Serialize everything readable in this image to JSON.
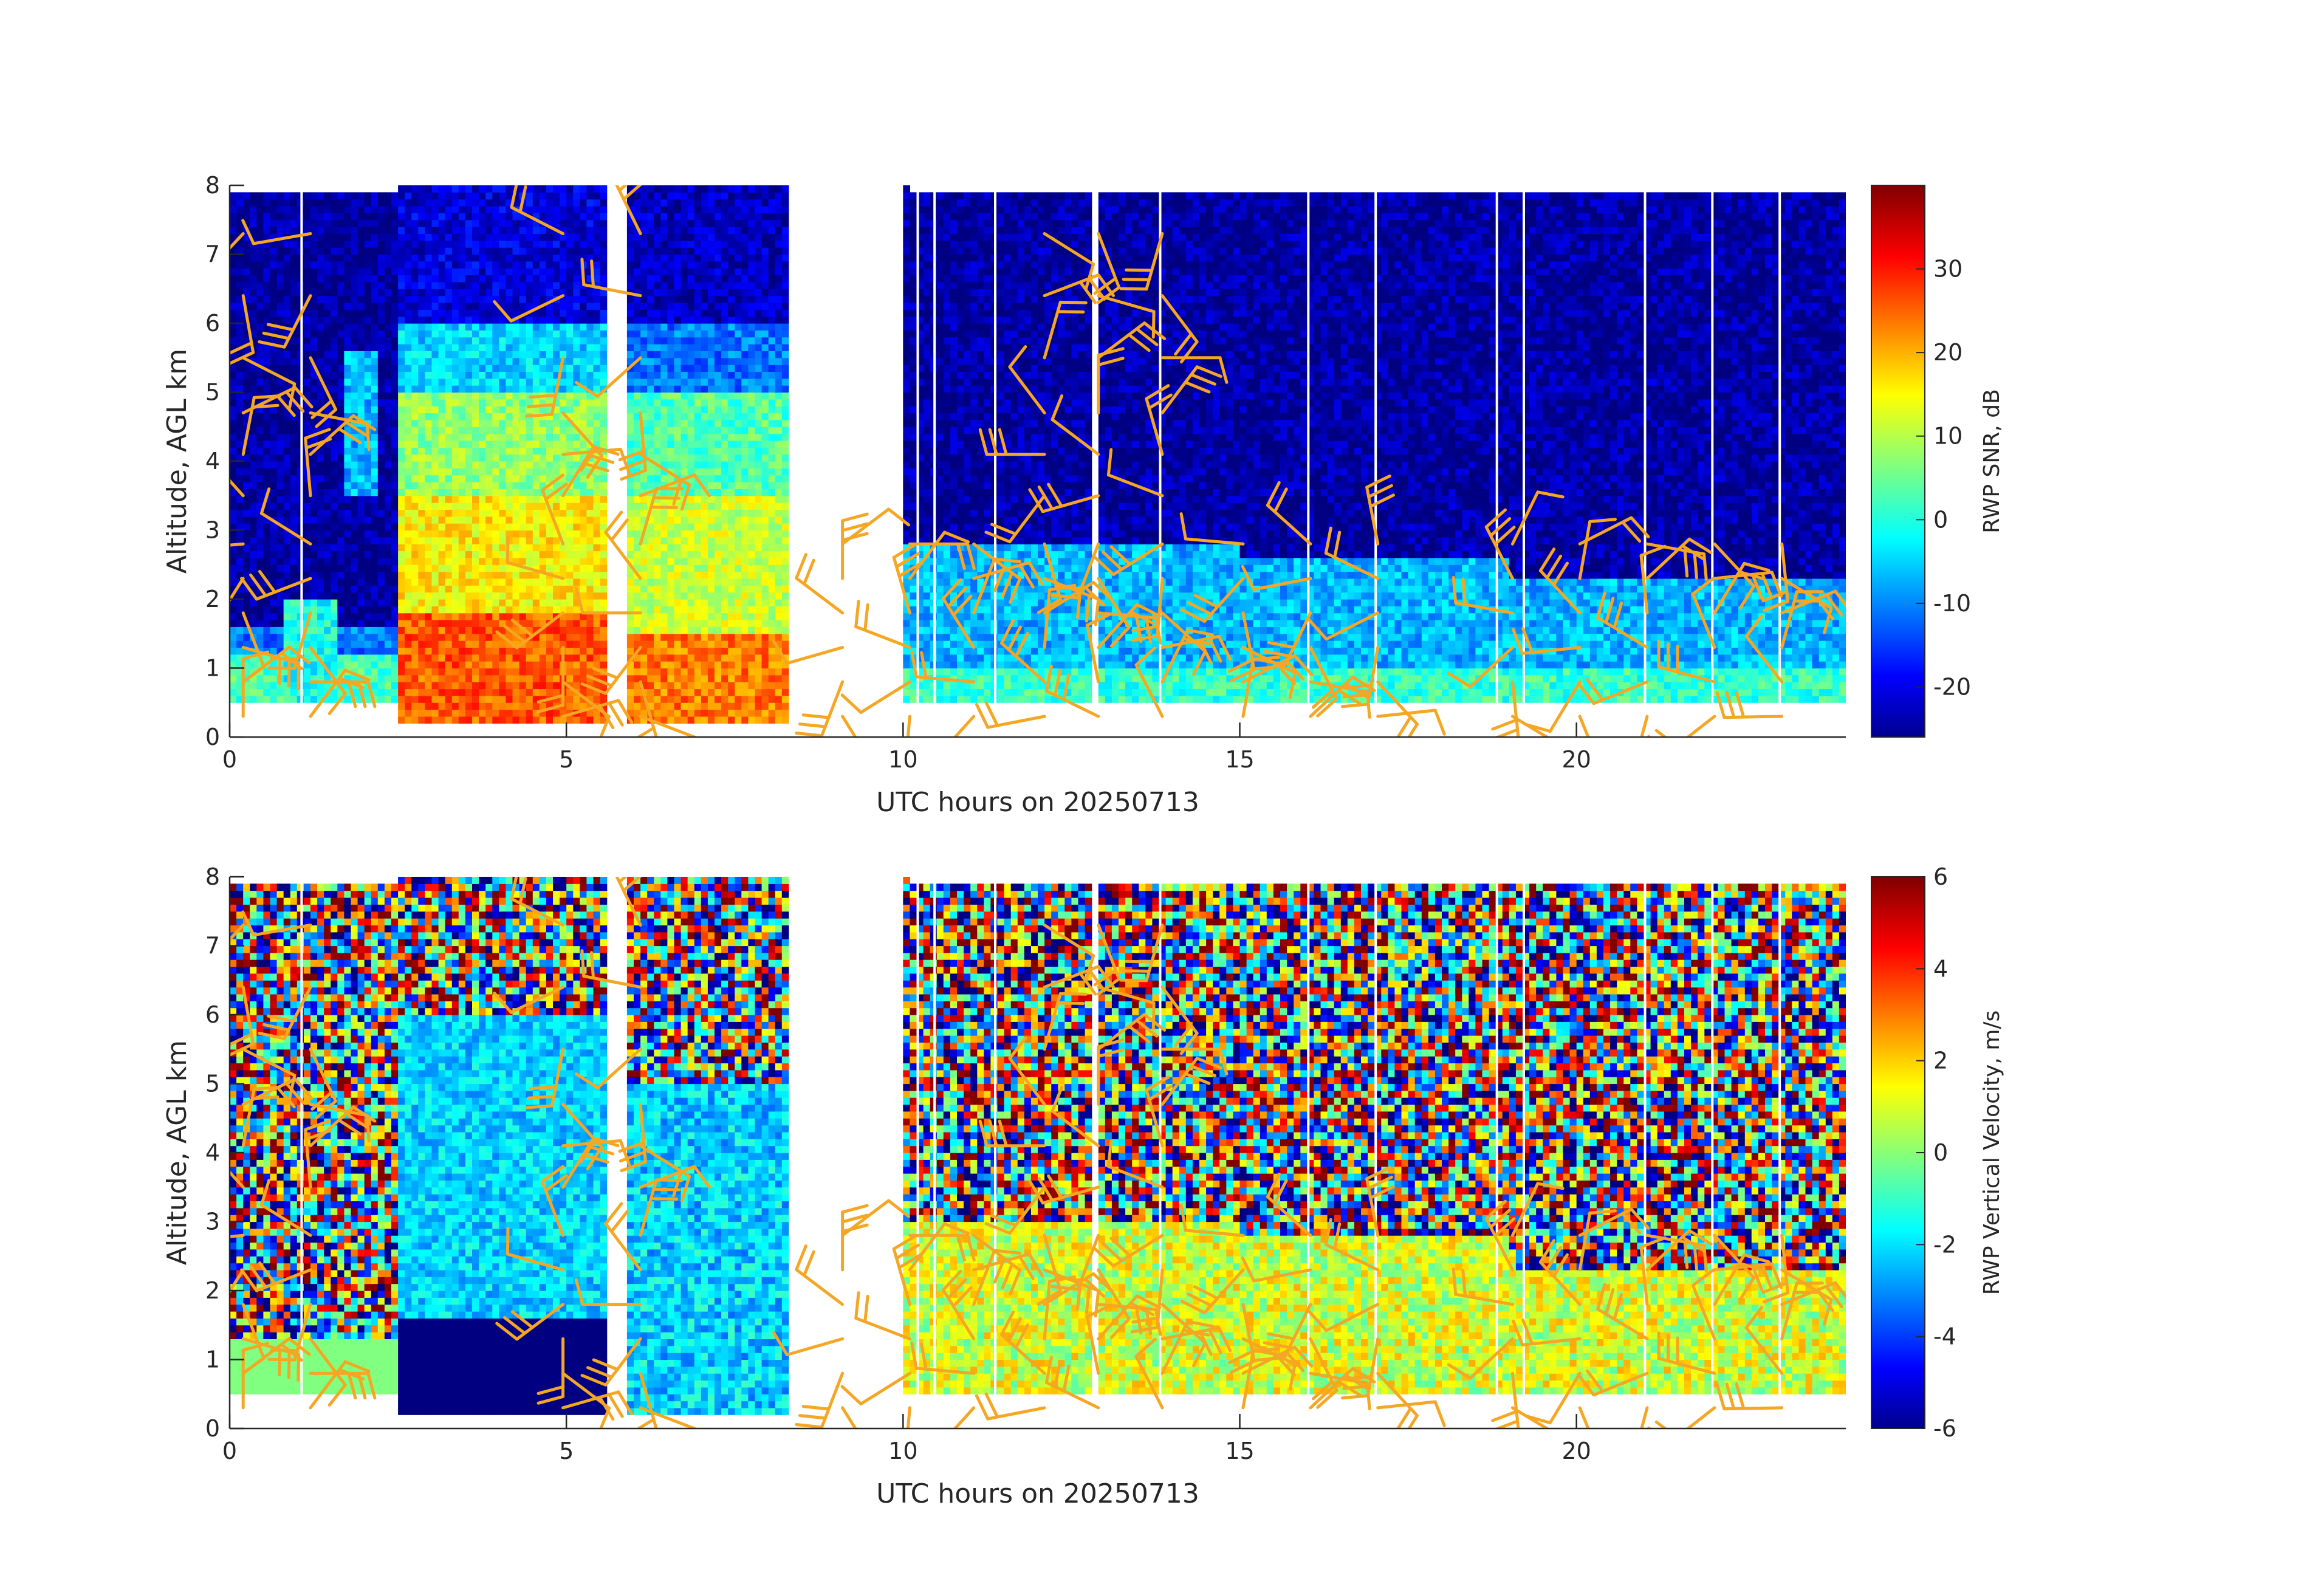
{
  "chart_data": [
    {
      "type": "heatmap",
      "name": "snr",
      "title": "",
      "xlabel": "UTC hours on 20250713",
      "ylabel": "Altitude, AGL km",
      "xlim": [
        0,
        24
      ],
      "ylim": [
        0,
        8
      ],
      "x_ticks": [
        0,
        5,
        10,
        15,
        20
      ],
      "y_ticks": [
        0,
        1,
        2,
        3,
        4,
        5,
        6,
        7,
        8
      ],
      "colorbar": {
        "label": "RWP SNR, dB",
        "min": -26,
        "max": 40,
        "ticks": [
          -20,
          -10,
          0,
          10,
          20,
          30
        ],
        "colormap": "jet"
      },
      "data_gaps_hours": [
        [
          5.6,
          5.9
        ],
        [
          8.3,
          10.05
        ],
        [
          12.75,
          12.9
        ]
      ],
      "barbs_color": "#f5a623"
    },
    {
      "type": "heatmap",
      "name": "velocity",
      "title": "",
      "xlabel": "UTC hours on 20250713",
      "ylabel": "Altitude, AGL km",
      "xlim": [
        0,
        24
      ],
      "ylim": [
        0,
        8
      ],
      "x_ticks": [
        0,
        5,
        10,
        15,
        20
      ],
      "y_ticks": [
        0,
        1,
        2,
        3,
        4,
        5,
        6,
        7,
        8
      ],
      "colorbar": {
        "label": "RWP Vertical Velocity, m/s",
        "min": -6,
        "max": 6,
        "ticks": [
          -6,
          -4,
          -2,
          0,
          2,
          4,
          6
        ],
        "colormap": "jet"
      },
      "data_gaps_hours": [
        [
          5.6,
          5.9
        ],
        [
          8.3,
          10.05
        ],
        [
          12.75,
          12.9
        ]
      ],
      "barbs_color": "#f5a623"
    }
  ]
}
